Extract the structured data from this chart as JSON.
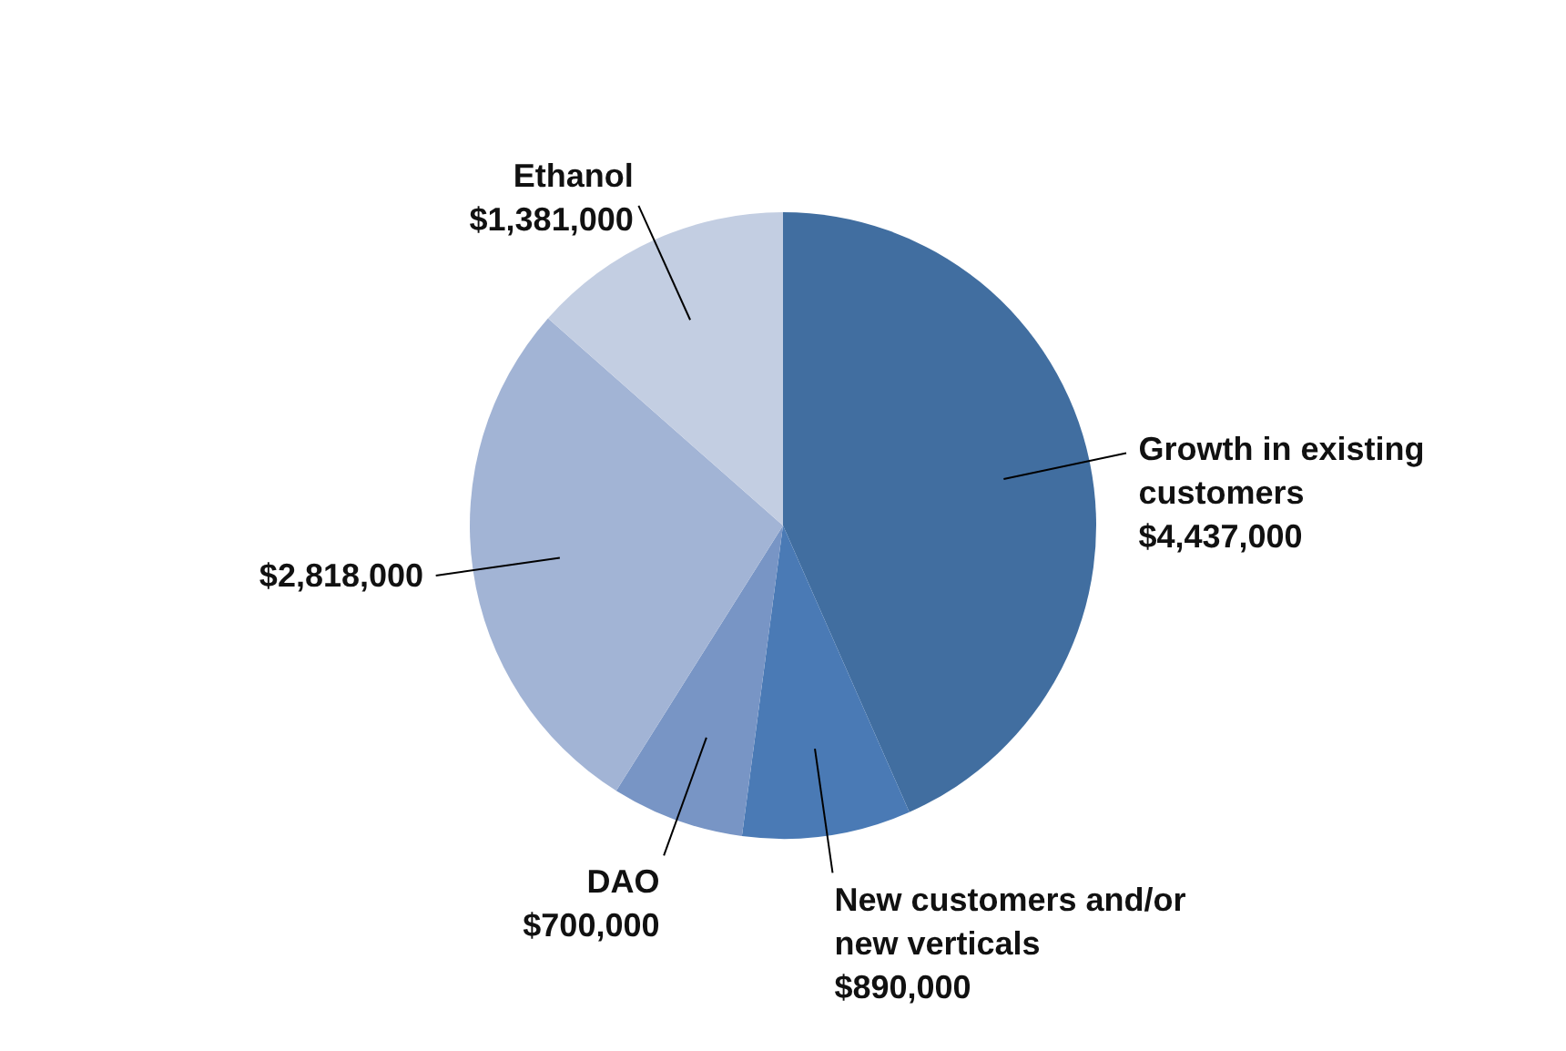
{
  "chart_data": {
    "type": "pie",
    "categories": [
      "Growth in existing customers",
      "New customers and/or new verticals",
      "DAO",
      null,
      "Ethanol"
    ],
    "values": [
      4437000,
      890000,
      700000,
      2818000,
      1381000
    ],
    "value_labels": [
      "$4,437,000",
      "$890,000",
      "$700,000",
      "$2,818,000",
      "$1,381,000"
    ],
    "colors": [
      "#416ea0",
      "#4a7ab5",
      "#7895c5",
      "#a2b4d5",
      "#c3cee2"
    ]
  }
}
